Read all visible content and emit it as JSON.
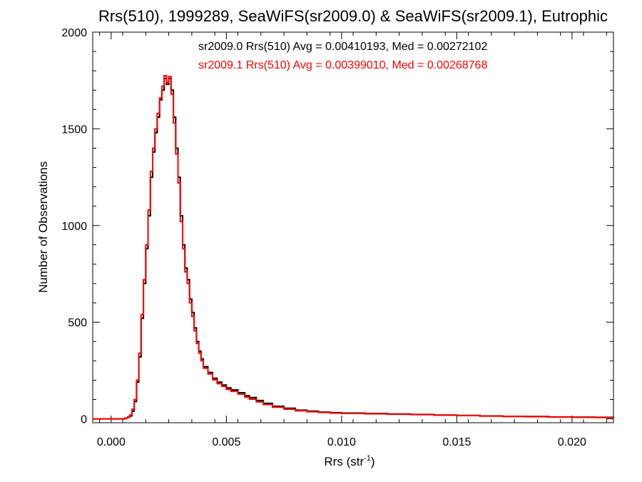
{
  "chart_data": {
    "type": "line",
    "title": "Rrs(510), 1999289, SeaWiFS(sr2009.0) & SeaWiFS(sr2009.1), Eutrophic",
    "xlabel": "Rrs (str",
    "xlabel_sup": "-1",
    "xlabel_suffix": ")",
    "ylabel": "Number of Observations",
    "xlim": [
      -0.0008,
      0.0218
    ],
    "ylim": [
      -20,
      2000
    ],
    "x_ticks": [
      0.0,
      0.005,
      0.01,
      0.015,
      0.02
    ],
    "x_tick_labels": [
      "0.000",
      "0.005",
      "0.010",
      "0.015",
      "0.020"
    ],
    "y_ticks": [
      0,
      500,
      1000,
      1500,
      2000
    ],
    "y_tick_labels": [
      "0",
      "500",
      "1000",
      "1500",
      "2000"
    ],
    "grid": false,
    "legend_position": "top-right",
    "series": [
      {
        "name": "sr2009.0 Rrs(510) Avg = 0.00410193, Med = 0.00272102",
        "color": "#000000",
        "x": [
          -0.0008,
          0.0,
          0.0004,
          0.0006,
          0.0007,
          0.0008,
          0.0009,
          0.001,
          0.0011,
          0.0012,
          0.0013,
          0.0014,
          0.0015,
          0.0016,
          0.0017,
          0.0018,
          0.0019,
          0.002,
          0.0021,
          0.0022,
          0.0023,
          0.0024,
          0.0025,
          0.0026,
          0.0027,
          0.0028,
          0.0029,
          0.003,
          0.0031,
          0.0032,
          0.0033,
          0.0034,
          0.0035,
          0.0036,
          0.0037,
          0.0038,
          0.0039,
          0.004,
          0.0042,
          0.0044,
          0.0046,
          0.0048,
          0.005,
          0.0052,
          0.0055,
          0.0058,
          0.006,
          0.0063,
          0.0066,
          0.007,
          0.0075,
          0.008,
          0.0085,
          0.009,
          0.0095,
          0.01,
          0.011,
          0.012,
          0.013,
          0.014,
          0.015,
          0.016,
          0.017,
          0.018,
          0.019,
          0.02,
          0.021,
          0.0218
        ],
        "y": [
          0,
          0,
          0,
          3,
          8,
          15,
          40,
          90,
          190,
          320,
          520,
          700,
          880,
          1050,
          1250,
          1380,
          1480,
          1560,
          1650,
          1700,
          1760,
          1730,
          1760,
          1700,
          1560,
          1400,
          1250,
          1050,
          900,
          780,
          720,
          620,
          550,
          470,
          400,
          350,
          310,
          270,
          240,
          210,
          190,
          175,
          160,
          150,
          135,
          120,
          110,
          95,
          80,
          65,
          55,
          45,
          40,
          35,
          32,
          30,
          28,
          25,
          23,
          20,
          18,
          15,
          13,
          12,
          10,
          9,
          8,
          7
        ]
      },
      {
        "name": "sr2009.1 Rrs(510) Avg = 0.00399010, Med = 0.00268768",
        "color": "#ff0000",
        "x": [
          -0.0008,
          0.0,
          0.0004,
          0.0006,
          0.0007,
          0.0008,
          0.0009,
          0.001,
          0.0011,
          0.0012,
          0.0013,
          0.0014,
          0.0015,
          0.0016,
          0.0017,
          0.0018,
          0.0019,
          0.002,
          0.0021,
          0.0022,
          0.0023,
          0.0024,
          0.0025,
          0.0026,
          0.0027,
          0.0028,
          0.0029,
          0.003,
          0.0031,
          0.0032,
          0.0033,
          0.0034,
          0.0035,
          0.0036,
          0.0037,
          0.0038,
          0.0039,
          0.004,
          0.0042,
          0.0044,
          0.0046,
          0.0048,
          0.005,
          0.0052,
          0.0055,
          0.0058,
          0.006,
          0.0063,
          0.0066,
          0.007,
          0.0075,
          0.008,
          0.0085,
          0.009,
          0.0095,
          0.01,
          0.011,
          0.012,
          0.013,
          0.014,
          0.015,
          0.016,
          0.017,
          0.018,
          0.019,
          0.02,
          0.021,
          0.0218
        ],
        "y": [
          0,
          0,
          0,
          4,
          10,
          20,
          50,
          100,
          200,
          340,
          540,
          720,
          900,
          1080,
          1280,
          1400,
          1500,
          1580,
          1660,
          1720,
          1775,
          1740,
          1770,
          1680,
          1530,
          1370,
          1220,
          1020,
          880,
          760,
          700,
          600,
          530,
          455,
          390,
          340,
          300,
          262,
          232,
          202,
          182,
          168,
          152,
          142,
          128,
          112,
          102,
          88,
          74,
          60,
          50,
          42,
          37,
          33,
          30,
          28,
          26,
          24,
          22,
          19,
          17,
          14,
          12,
          11,
          9,
          8,
          7,
          6
        ]
      }
    ]
  }
}
